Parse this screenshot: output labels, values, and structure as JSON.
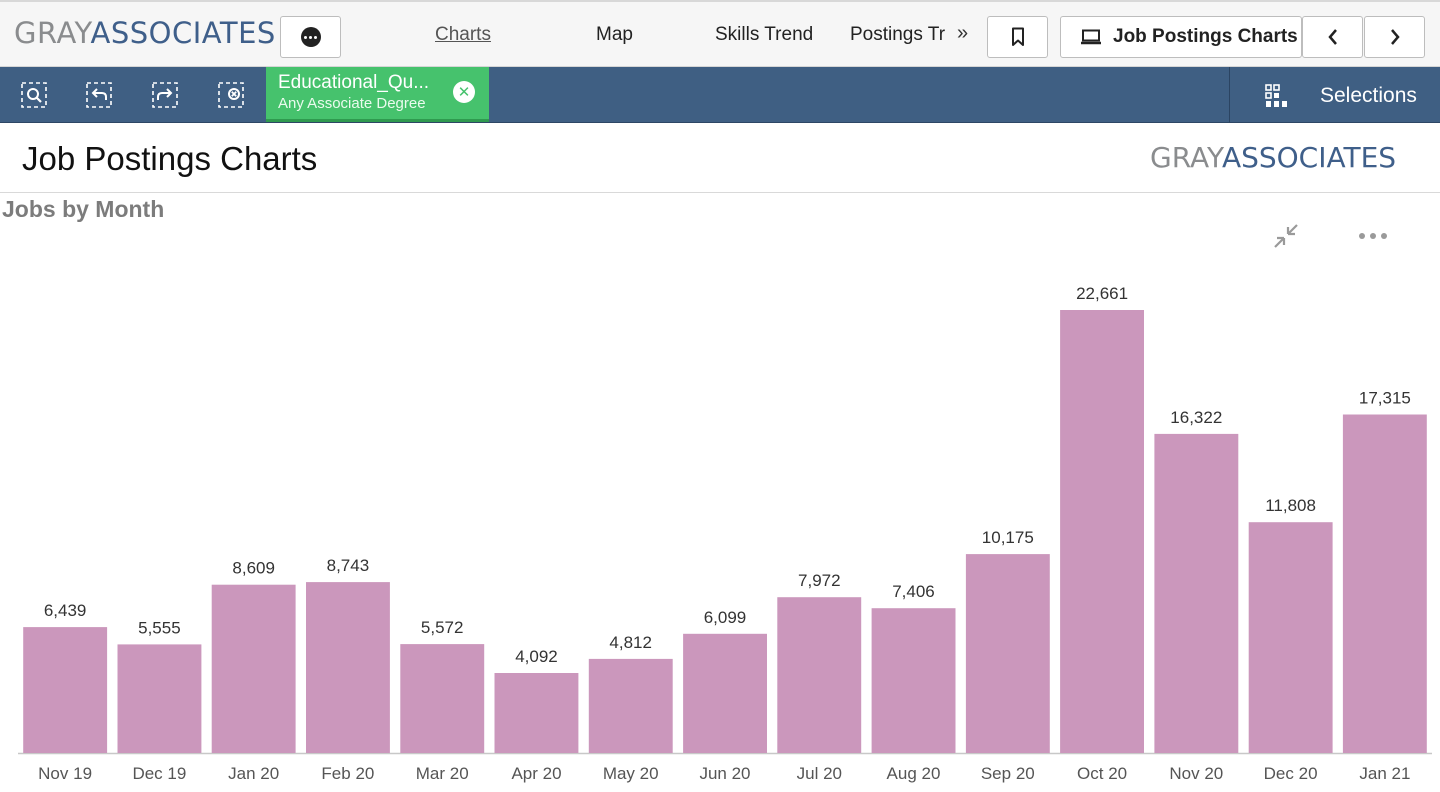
{
  "app": {
    "logo_part1": "GRAY",
    "logo_part2": "ASSOCIATES",
    "tabs": [
      "Charts",
      "Map",
      "Skills Trend",
      "Postings Tr"
    ],
    "active_tab": "Charts",
    "more_tabs_icon": "double-chevron-right-icon",
    "current_sheet": "Job Postings Charts",
    "icons": [
      "more-options-icon",
      "bookmark-icon",
      "sheet-icon",
      "chevron-left-icon",
      "chevron-right-icon"
    ]
  },
  "selection_bar": {
    "tools": [
      "smart-search-icon",
      "step-back-icon",
      "step-forward-icon",
      "clear-selections-icon"
    ],
    "chip": {
      "field": "Educational_Qu...",
      "value": "Any Associate Degree"
    },
    "selections_label": "Selections"
  },
  "sheet": {
    "title": "Job Postings Charts",
    "logo_part1": "GRAY",
    "logo_part2": "ASSOCIATES"
  },
  "colors": {
    "bar": "#cb97bc",
    "selection_bar": "#3f5f83",
    "chip": "#46c26d",
    "brand_blue": "#3f5f8a",
    "brand_gray": "#8a8c8e"
  },
  "chart_data": {
    "type": "bar",
    "title": "Jobs by Month",
    "xlabel": "",
    "ylabel": "",
    "categories": [
      "Nov 19",
      "Dec 19",
      "Jan 20",
      "Feb 20",
      "Mar 20",
      "Apr 20",
      "May 20",
      "Jun 20",
      "Jul 20",
      "Aug 20",
      "Sep 20",
      "Oct 20",
      "Nov 20",
      "Dec 20",
      "Jan 21"
    ],
    "values": [
      6439,
      5555,
      8609,
      8743,
      5572,
      4092,
      4812,
      6099,
      7972,
      7406,
      10175,
      22661,
      16322,
      11808,
      17315
    ],
    "data_labels": [
      "6,439",
      "5,555",
      "8,609",
      "8,743",
      "5,572",
      "4,092",
      "4,812",
      "6,099",
      "7,972",
      "7,406",
      "10,175",
      "22,661",
      "16,322",
      "11,808",
      "17,315"
    ],
    "ylim": [
      0,
      22661
    ],
    "grid": false,
    "legend": "none"
  }
}
